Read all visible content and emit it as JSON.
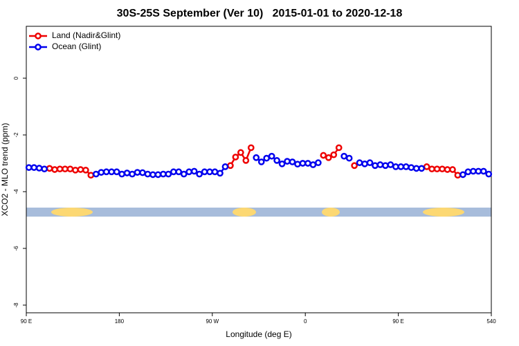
{
  "chart_data": {
    "type": "line",
    "title": "30S-25S September (Ver 10)   2015-01-01 to 2020-12-18",
    "xlabel": "Longitude (deg E)",
    "ylabel": "XCO2 - MLO trend (ppm)",
    "x": [
      92.5,
      97.5,
      102.5,
      107.5,
      112.5,
      117.5,
      122.5,
      127.5,
      132.5,
      137.5,
      142.5,
      147.5,
      152.5,
      157.5,
      162.5,
      167.5,
      172.5,
      177.5,
      182.5,
      187.5,
      192.5,
      197.5,
      202.5,
      207.5,
      212.5,
      217.5,
      222.5,
      227.5,
      232.5,
      237.5,
      242.5,
      247.5,
      252.5,
      257.5,
      262.5,
      267.5,
      272.5,
      277.5,
      282.5,
      287.5,
      292.5,
      297.5,
      302.5,
      307.5,
      312.5,
      317.5,
      322.5,
      327.5,
      332.5,
      337.5,
      342.5,
      347.5,
      352.5,
      357.5,
      362.5,
      367.5,
      372.5,
      377.5,
      382.5,
      387.5,
      392.5,
      397.5,
      402.5,
      407.5,
      412.5,
      417.5,
      422.5,
      427.5,
      432.5,
      437.5,
      442.5,
      447.5,
      452.5,
      457.5,
      462.5,
      467.5,
      472.5,
      477.5,
      482.5,
      487.5,
      492.5,
      497.5,
      502.5,
      507.5,
      512.5,
      517.5,
      522.5,
      527.5,
      532.5,
      537.5
    ],
    "series": [
      {
        "name": "Land (Nadir&Glint)",
        "color": "#ee0000",
        "values": [
          null,
          null,
          null,
          null,
          -3.18,
          -3.22,
          -3.2,
          -3.2,
          -3.2,
          -3.24,
          -3.22,
          -3.24,
          -3.42,
          null,
          null,
          null,
          null,
          null,
          null,
          null,
          null,
          null,
          null,
          null,
          null,
          null,
          null,
          null,
          null,
          null,
          null,
          null,
          null,
          null,
          null,
          null,
          null,
          null,
          null,
          -3.08,
          -2.78,
          -2.62,
          -2.9,
          -2.45,
          null,
          null,
          null,
          null,
          null,
          null,
          null,
          null,
          null,
          null,
          null,
          null,
          null,
          -2.72,
          -2.8,
          -2.7,
          -2.45,
          null,
          null,
          -3.08,
          null,
          null,
          null,
          null,
          null,
          null,
          null,
          null,
          null,
          null,
          null,
          null,
          null,
          -3.12,
          -3.2,
          -3.2,
          -3.2,
          -3.22,
          -3.22,
          -3.42,
          null,
          null,
          null,
          null,
          null,
          null
        ]
      },
      {
        "name": "Ocean (Glint)",
        "color": "#0000ee",
        "values": [
          -3.15,
          -3.15,
          -3.17,
          -3.2,
          null,
          null,
          null,
          null,
          null,
          null,
          null,
          null,
          null,
          -3.38,
          -3.32,
          -3.3,
          -3.3,
          -3.3,
          -3.38,
          -3.34,
          -3.38,
          -3.32,
          -3.33,
          -3.38,
          -3.4,
          -3.4,
          -3.38,
          -3.38,
          -3.3,
          -3.3,
          -3.38,
          -3.3,
          -3.28,
          -3.38,
          -3.3,
          -3.3,
          -3.3,
          -3.35,
          -3.12,
          null,
          null,
          null,
          null,
          null,
          -2.8,
          -2.95,
          -2.82,
          -2.75,
          -2.9,
          -3.02,
          -2.93,
          -2.95,
          -3.03,
          -3.0,
          -3.0,
          -3.05,
          -2.98,
          null,
          null,
          null,
          null,
          -2.75,
          -2.82,
          null,
          -2.98,
          -3.02,
          -2.98,
          -3.08,
          -3.05,
          -3.08,
          -3.05,
          -3.12,
          -3.12,
          -3.12,
          -3.15,
          -3.18,
          -3.18,
          null,
          null,
          null,
          null,
          null,
          null,
          null,
          -3.4,
          -3.3,
          -3.28,
          -3.28,
          -3.28,
          -3.38
        ]
      }
    ],
    "xlim": [
      90,
      540
    ],
    "xticks": [
      {
        "value": 90,
        "label": "90 E"
      },
      180,
      {
        "value": 270,
        "label": "90 W"
      },
      {
        "value": 360,
        "label": "0"
      },
      {
        "value": 450,
        "label": "90 E"
      },
      540
    ],
    "ylim": [
      -8.27,
      1.83
    ],
    "yticks": [
      0,
      -2,
      -4,
      -6,
      -8
    ],
    "legend": "top-left"
  }
}
